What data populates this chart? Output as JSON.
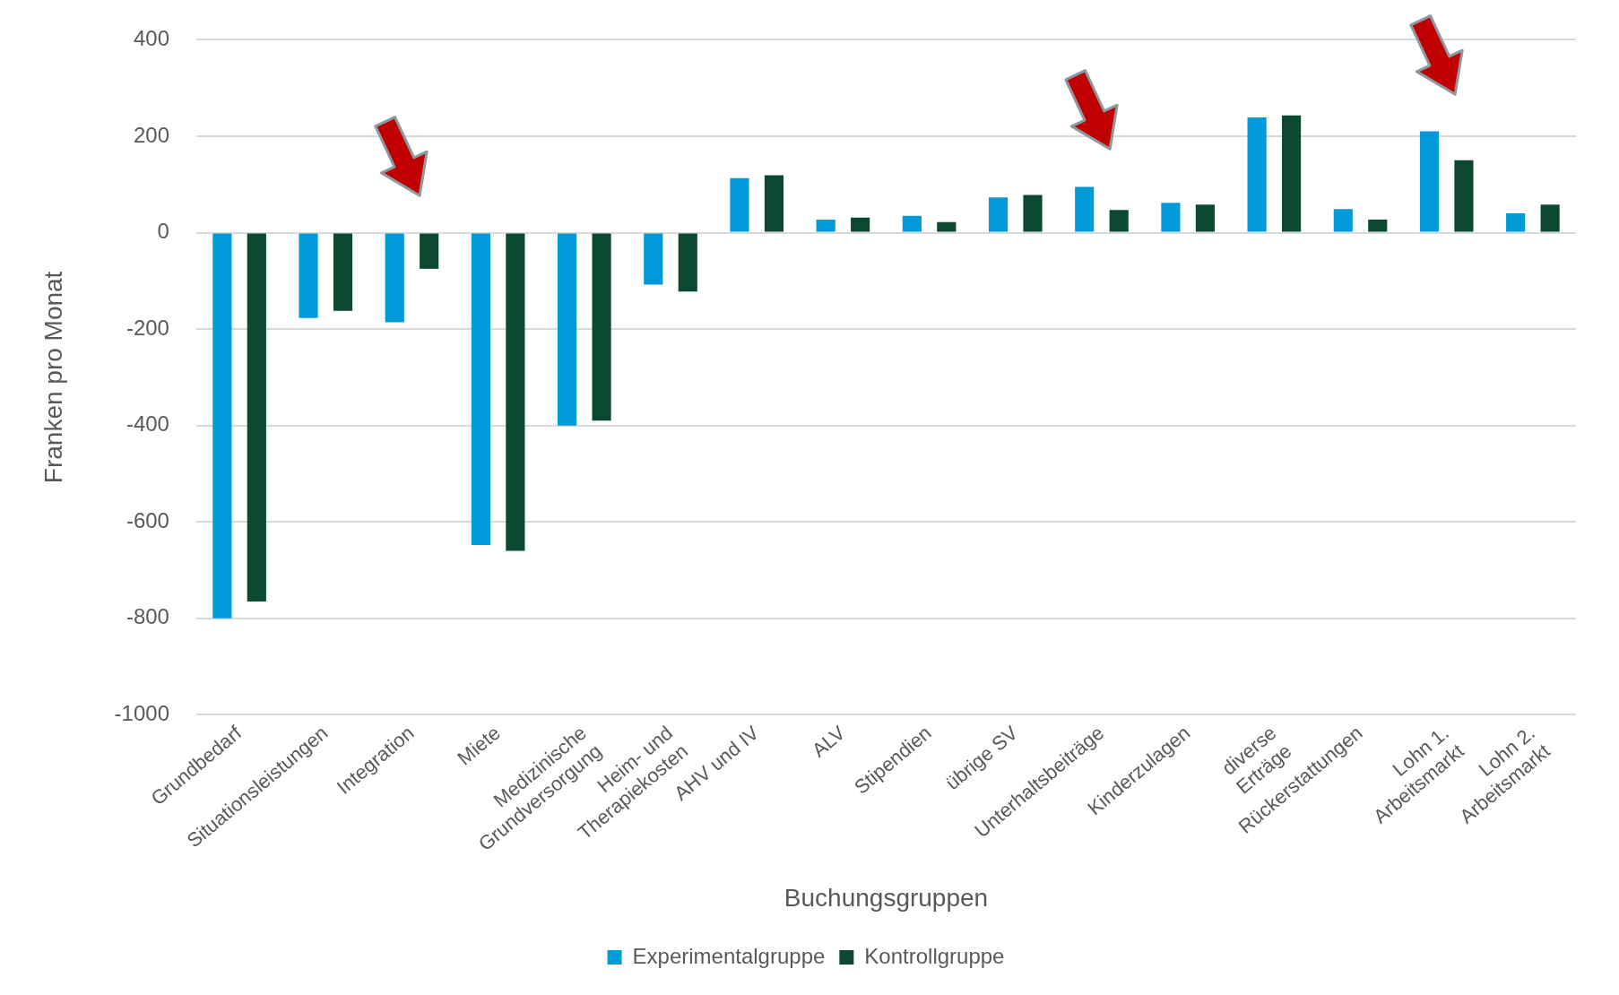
{
  "chart_data": {
    "type": "bar",
    "xlabel": "Buchungsgruppen",
    "ylabel": "Franken pro Monat",
    "categories": [
      "Grundbedarf",
      "Situationsleistungen",
      "Integration",
      "Miete",
      "Medizinische Grundversorgung",
      "Heim- und Therapiekosten",
      "AHV und IV",
      "ALV",
      "Stipendien",
      "übrige SV",
      "Unterhaltsbeiträge",
      "Kinderzulagen",
      "diverse Erträge",
      "Rückerstattungen",
      "Lohn 1. Arbeitsmarkt",
      "Lohn 2. Arbeitsmarkt"
    ],
    "series": [
      {
        "name": "Experimentalgruppe",
        "color": "#009ad8",
        "values": [
          -800,
          -177,
          -186,
          -648,
          -400,
          -108,
          113,
          27,
          35,
          73,
          95,
          62,
          239,
          49,
          210,
          40
        ]
      },
      {
        "name": "Kontrollgruppe",
        "color": "#0b4a30",
        "values": [
          -765,
          -162,
          -75,
          -660,
          -390,
          -122,
          119,
          31,
          22,
          78,
          47,
          58,
          243,
          27,
          150,
          58
        ]
      }
    ],
    "ylim": [
      -1000,
      400
    ],
    "yticks": [
      -1000,
      -800,
      -600,
      -400,
      -200,
      0,
      200,
      400
    ],
    "grid": "y",
    "legend": "bottom"
  }
}
